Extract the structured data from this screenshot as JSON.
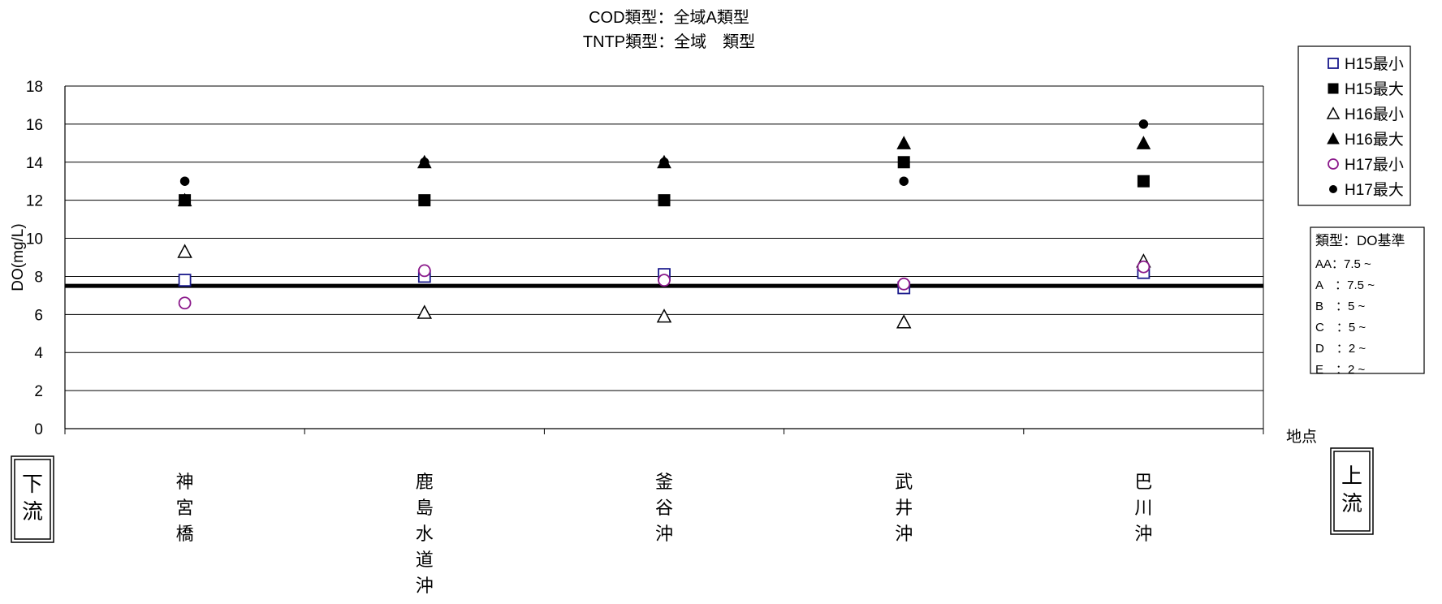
{
  "chart_data": {
    "type": "scatter",
    "title_lines": [
      "COD類型：全域A類型",
      "TNTP類型：全域　類型"
    ],
    "ylabel": "DO(mg/L)",
    "xlabel": "地点",
    "ylim": [
      0,
      18
    ],
    "yticks": [
      0,
      2,
      4,
      6,
      8,
      10,
      12,
      14,
      16,
      18
    ],
    "grid": true,
    "categories": [
      [
        "神",
        "宮",
        "橋"
      ],
      [
        "鹿",
        "島",
        "水",
        "道",
        "沖"
      ],
      [
        "釜",
        "谷",
        "沖"
      ],
      [
        "武",
        "井",
        "沖"
      ],
      [
        "巴",
        "川",
        "沖"
      ]
    ],
    "series": [
      {
        "name": "H15最小",
        "marker": "open-square",
        "color": "#1a1a8c",
        "values": [
          7.8,
          8.0,
          8.1,
          7.4,
          8.2
        ]
      },
      {
        "name": "H15最大",
        "marker": "filled-square",
        "color": "#000000",
        "values": [
          12.0,
          12.0,
          12.0,
          14.0,
          13.0
        ]
      },
      {
        "name": "H16最小",
        "marker": "open-triangle",
        "color": "#000000",
        "values": [
          9.3,
          6.1,
          5.9,
          5.6,
          8.8
        ]
      },
      {
        "name": "H16最大",
        "marker": "filled-triangle",
        "color": "#000000",
        "values": [
          12.0,
          14.0,
          14.0,
          15.0,
          15.0
        ]
      },
      {
        "name": "H17最小",
        "marker": "open-circle",
        "color": "#8b1a8b",
        "values": [
          6.6,
          8.3,
          7.8,
          7.6,
          8.5
        ]
      },
      {
        "name": "H17最大",
        "marker": "filled-circle",
        "color": "#000000",
        "values": [
          13.0,
          14.0,
          14.0,
          13.0,
          16.0
        ]
      }
    ],
    "reference_line": {
      "value": 7.5,
      "color": "#000000"
    },
    "legend_position": "top-right",
    "standards_box": {
      "title": "類型：DO基準",
      "rows": [
        "AA：7.5 ~",
        "A　：7.5 ~",
        "B　：5 ~",
        "C　：5 ~",
        "D　：2 ~",
        "E　：2 ~"
      ]
    },
    "flow_labels": {
      "downstream": [
        "下",
        "流"
      ],
      "upstream": [
        "上",
        "流"
      ]
    }
  }
}
